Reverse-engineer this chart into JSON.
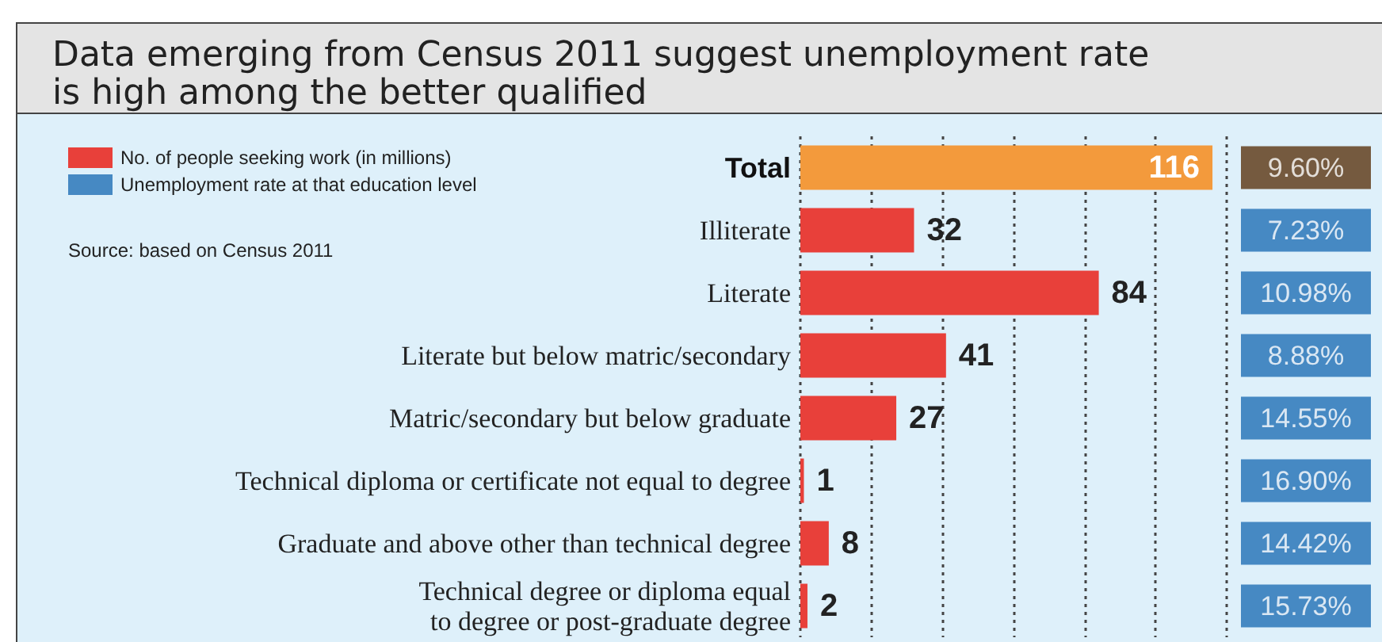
{
  "chart_data": [
    {
      "type": "bar",
      "orientation": "horizontal",
      "title": "Data emerging from Census 2011 suggest unemployment rate is high among the better qualified",
      "annotations": [
        "Source: based on Census 2011"
      ],
      "categories": [
        "Total",
        "Illiterate",
        "Literate",
        "Literate but below matric/secondary",
        "Matric/secondary but below graduate",
        "Technical diploma or certificate not equal to degree",
        "Graduate and above other than technical degree",
        "Technical degree or diploma equal to degree or post-graduate degree"
      ],
      "series": [
        {
          "name": "No. of people seeking work (in millions)",
          "color": "#e8403a",
          "colors": [
            "#f39a3c",
            "#e8403a",
            "#e8403a",
            "#e8403a",
            "#e8403a",
            "#e8403a",
            "#e8403a",
            "#e8403a"
          ],
          "values": [
            116,
            32,
            84,
            41,
            27,
            1,
            8,
            2
          ]
        }
      ],
      "data_labels": true,
      "xlim": [
        0,
        120
      ],
      "xticks": [
        {
          "value": 0,
          "label": null
        },
        {
          "value": 20,
          "label": null
        },
        {
          "value": 40,
          "label": null
        },
        {
          "value": 60,
          "label": null
        },
        {
          "value": 80,
          "label": null
        },
        {
          "value": 100,
          "label": null
        },
        {
          "value": 120,
          "label": null
        }
      ],
      "tick_labels": "y",
      "grid": "x",
      "legend": "top left"
    },
    {
      "type": "other",
      "legend": "top left",
      "categories": [
        null,
        null,
        null,
        null,
        null,
        null,
        null,
        null
      ],
      "series": [
        {
          "name": "Unemployment rate at that education level",
          "color": "#1f6fb5",
          "colors": [
            "#5a3510",
            "#1f6fb5",
            "#1f6fb5",
            "#1f6fb5",
            "#1f6fb5",
            "#1f6fb5",
            "#1f6fb5",
            "#1f6fb5"
          ],
          "values": [
            9.6,
            7.23,
            10.98,
            8.88,
            14.55,
            16.9,
            14.42,
            15.73
          ],
          "value_labels": [
            "9.60%",
            "7.23%",
            "10.98%",
            "8.88%",
            "14.55%",
            "16.90%",
            "14.42%",
            "15.73%"
          ]
        }
      ]
    }
  ]
}
